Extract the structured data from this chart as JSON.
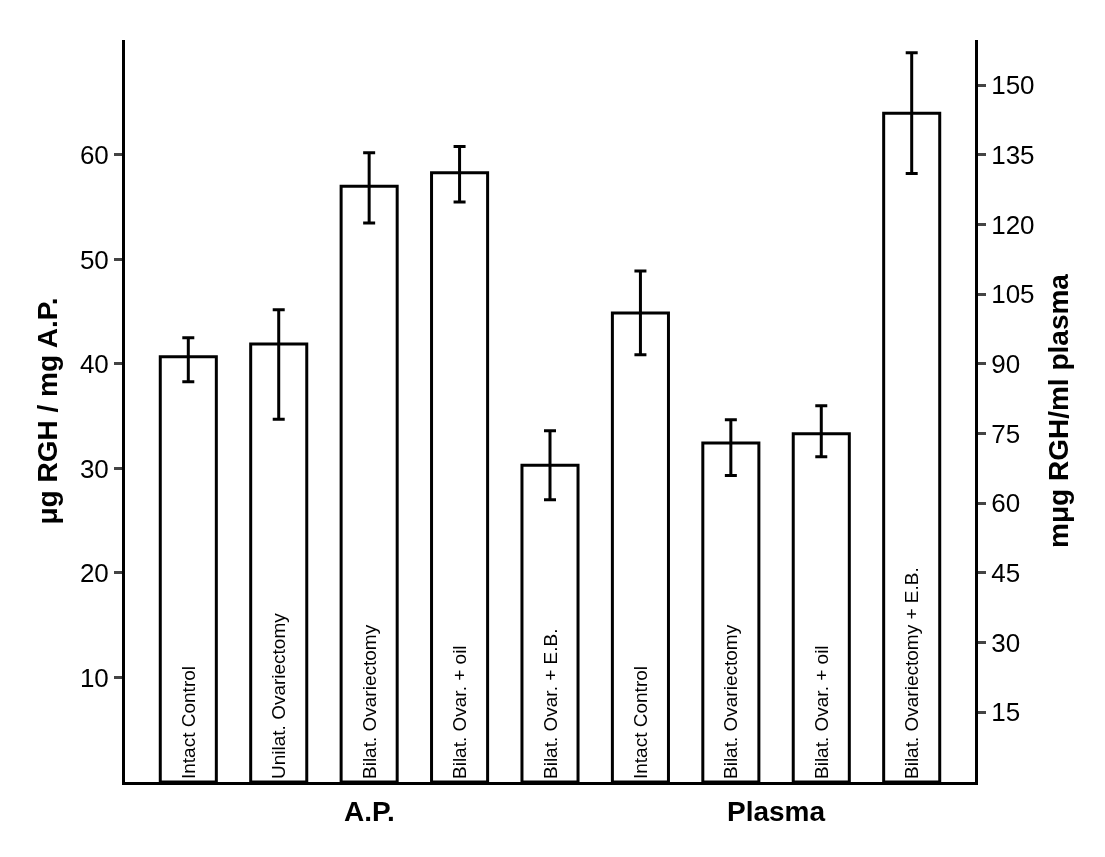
{
  "chart_data": {
    "type": "bar",
    "ylabel": "μg RGH / mg A.P.",
    "y2label": "mμg RGH/ml plasma",
    "categories": [
      "Intact Control",
      "Unilat. Ovariectomy",
      "Bilat. Ovariectomy",
      "Bilat. Ovar. + oil",
      "Bilat. Ovar. + E.B.",
      "Intact Control",
      "Bilat. Ovariectomy",
      "Bilat. Ovar. + oil",
      "Bilat. Ovariectomy + E.B."
    ],
    "series": [
      {
        "color": "#ffffff",
        "axis": "y",
        "values": [
          40.7,
          41.9,
          57.0,
          58.3,
          30.3,
          null,
          null,
          null,
          null
        ],
        "errors": [
          [
            38.3,
            42.5
          ],
          [
            34.7,
            45.2
          ],
          [
            53.5,
            60.2
          ],
          [
            55.5,
            60.8
          ],
          [
            27.0,
            33.6
          ],
          null,
          null,
          null,
          null
        ]
      },
      {
        "color": "#ffffff",
        "axis": "y2",
        "values": [
          null,
          null,
          null,
          null,
          null,
          101,
          73,
          75,
          144
        ],
        "errors": [
          null,
          null,
          null,
          null,
          null,
          [
            92,
            110
          ],
          [
            66,
            78
          ],
          [
            70,
            81
          ],
          [
            131,
            157
          ]
        ]
      }
    ],
    "ylim": [
      0,
      71
    ],
    "yticks": [
      10,
      20,
      30,
      40,
      50,
      60
    ],
    "y2lim": [
      0,
      159.75
    ],
    "y2ticks": [
      15,
      30,
      45,
      60,
      75,
      90,
      105,
      120,
      135,
      150
    ],
    "annotations": [
      "A.P.",
      "Plasma"
    ]
  }
}
